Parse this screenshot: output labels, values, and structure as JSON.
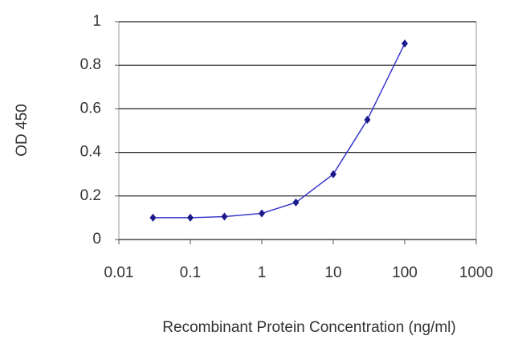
{
  "chart_data": {
    "type": "line",
    "x_label": "Recombinant Protein Concentration (ng/ml)",
    "y_label": "OD 450",
    "x": [
      0.03,
      0.1,
      0.3,
      1,
      3,
      10,
      30,
      100
    ],
    "series": [
      {
        "color": "#1a1a8c",
        "line_color": "#3a3acc",
        "values": [
          0.1,
          0.1,
          0.105,
          0.12,
          0.17,
          0.3,
          0.55,
          0.9
        ]
      }
    ],
    "xlim": [
      0.01,
      1000
    ],
    "xticks": [
      0.01,
      0.1,
      1,
      10,
      100,
      1000
    ],
    "xscale": "log",
    "ylim": [
      0,
      1
    ],
    "yticks": [
      0,
      0.2,
      0.4,
      0.6,
      0.8,
      1
    ],
    "grid": true
  }
}
